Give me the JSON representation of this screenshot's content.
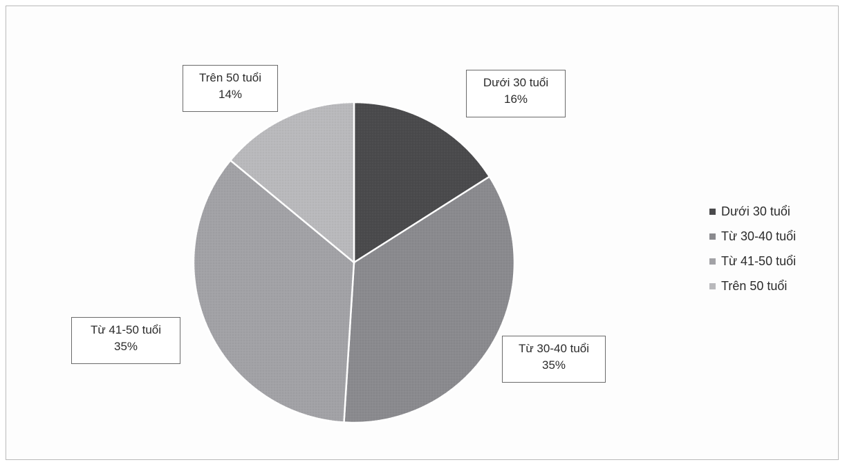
{
  "chart_data": {
    "type": "pie",
    "categories": [
      "Dưới 30 tuổi",
      "Từ 30-40 tuổi",
      "Từ 41-50 tuổi",
      "Trên 50 tuổi"
    ],
    "values": [
      16,
      35,
      35,
      14
    ],
    "labels": [
      {
        "name": "Dưới 30 tuổi",
        "pct": "16%"
      },
      {
        "name": "Từ 30-40 tuổi",
        "pct": "35%"
      },
      {
        "name": "Từ 41-50 tuổi",
        "pct": "35%"
      },
      {
        "name": "Trên 50 tuổi",
        "pct": "14%"
      }
    ],
    "colors": [
      "#4a4a4c",
      "#8a8a8e",
      "#a2a2a6",
      "#b9b9bc"
    ],
    "legend_position": "right",
    "start_angle": "12 o'clock",
    "direction": "clockwise"
  }
}
